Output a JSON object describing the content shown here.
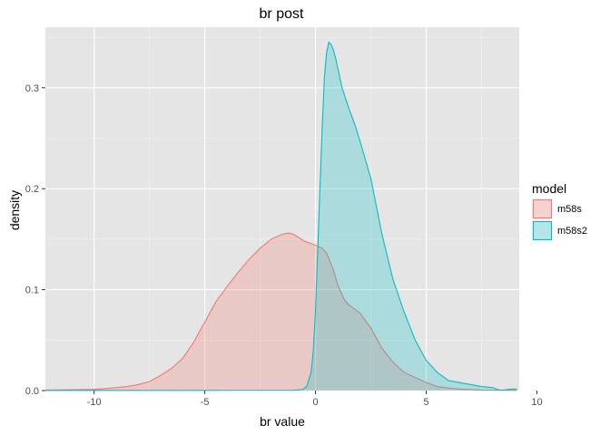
{
  "chart_data": {
    "type": "area",
    "title": "br post",
    "xlabel": "br value",
    "ylabel": "density",
    "xlim": [
      -12.2,
      9.2
    ],
    "ylim": [
      0,
      0.36
    ],
    "x_ticks": [
      -10,
      -5,
      0,
      5,
      10
    ],
    "x_tick_labels": [
      "-10",
      "-5",
      "0",
      "5",
      "10"
    ],
    "y_ticks": [
      0.0,
      0.1,
      0.2,
      0.3
    ],
    "y_tick_labels": [
      "0.0",
      "0.1",
      "0.2",
      "0.3"
    ],
    "grid": true,
    "legend": {
      "title": "model",
      "placement": "right"
    },
    "series": [
      {
        "name": "m58s",
        "color": "#f8766d",
        "x": [
          -12.2,
          -11.0,
          -10.0,
          -9.5,
          -9.0,
          -8.5,
          -8.0,
          -7.5,
          -7.0,
          -6.5,
          -6.0,
          -5.5,
          -5.0,
          -4.5,
          -4.0,
          -3.5,
          -3.0,
          -2.5,
          -2.0,
          -1.5,
          -1.2,
          -1.0,
          -0.5,
          0.0,
          0.3,
          0.5,
          0.8,
          1.0,
          1.3,
          1.5,
          2.0,
          2.5,
          3.0,
          3.5,
          4.0,
          4.5,
          5.0,
          5.5,
          6.0,
          6.5,
          7.0,
          7.5,
          8.0,
          8.5,
          9.1
        ],
        "y": [
          0.0005,
          0.0008,
          0.0012,
          0.002,
          0.003,
          0.004,
          0.006,
          0.009,
          0.015,
          0.022,
          0.032,
          0.048,
          0.068,
          0.088,
          0.103,
          0.117,
          0.13,
          0.141,
          0.15,
          0.155,
          0.156,
          0.155,
          0.148,
          0.144,
          0.141,
          0.136,
          0.12,
          0.105,
          0.09,
          0.085,
          0.077,
          0.062,
          0.042,
          0.028,
          0.018,
          0.013,
          0.008,
          0.004,
          0.0025,
          0.0015,
          0.001,
          0.0005,
          0.0004,
          0.0003,
          0.0002
        ]
      },
      {
        "name": "m58s2",
        "color": "#00bfc4",
        "x": [
          -12.2,
          -10.0,
          -5.0,
          -1.0,
          -0.6,
          -0.4,
          -0.2,
          -0.1,
          0.0,
          0.1,
          0.2,
          0.3,
          0.4,
          0.5,
          0.6,
          0.7,
          0.8,
          0.9,
          1.0,
          1.2,
          1.5,
          1.8,
          2.0,
          2.5,
          3.0,
          3.5,
          4.0,
          4.5,
          5.0,
          5.5,
          6.0,
          6.5,
          7.0,
          7.5,
          8.0,
          8.3,
          8.5,
          8.8,
          9.1
        ],
        "y": [
          0.0002,
          0.0002,
          0.0002,
          0.0003,
          0.001,
          0.004,
          0.018,
          0.04,
          0.08,
          0.14,
          0.2,
          0.26,
          0.31,
          0.335,
          0.345,
          0.343,
          0.338,
          0.33,
          0.32,
          0.3,
          0.28,
          0.262,
          0.248,
          0.21,
          0.155,
          0.11,
          0.078,
          0.05,
          0.03,
          0.018,
          0.01,
          0.008,
          0.006,
          0.004,
          0.003,
          0.0005,
          0.0005,
          0.0015,
          0.0015
        ]
      }
    ]
  }
}
